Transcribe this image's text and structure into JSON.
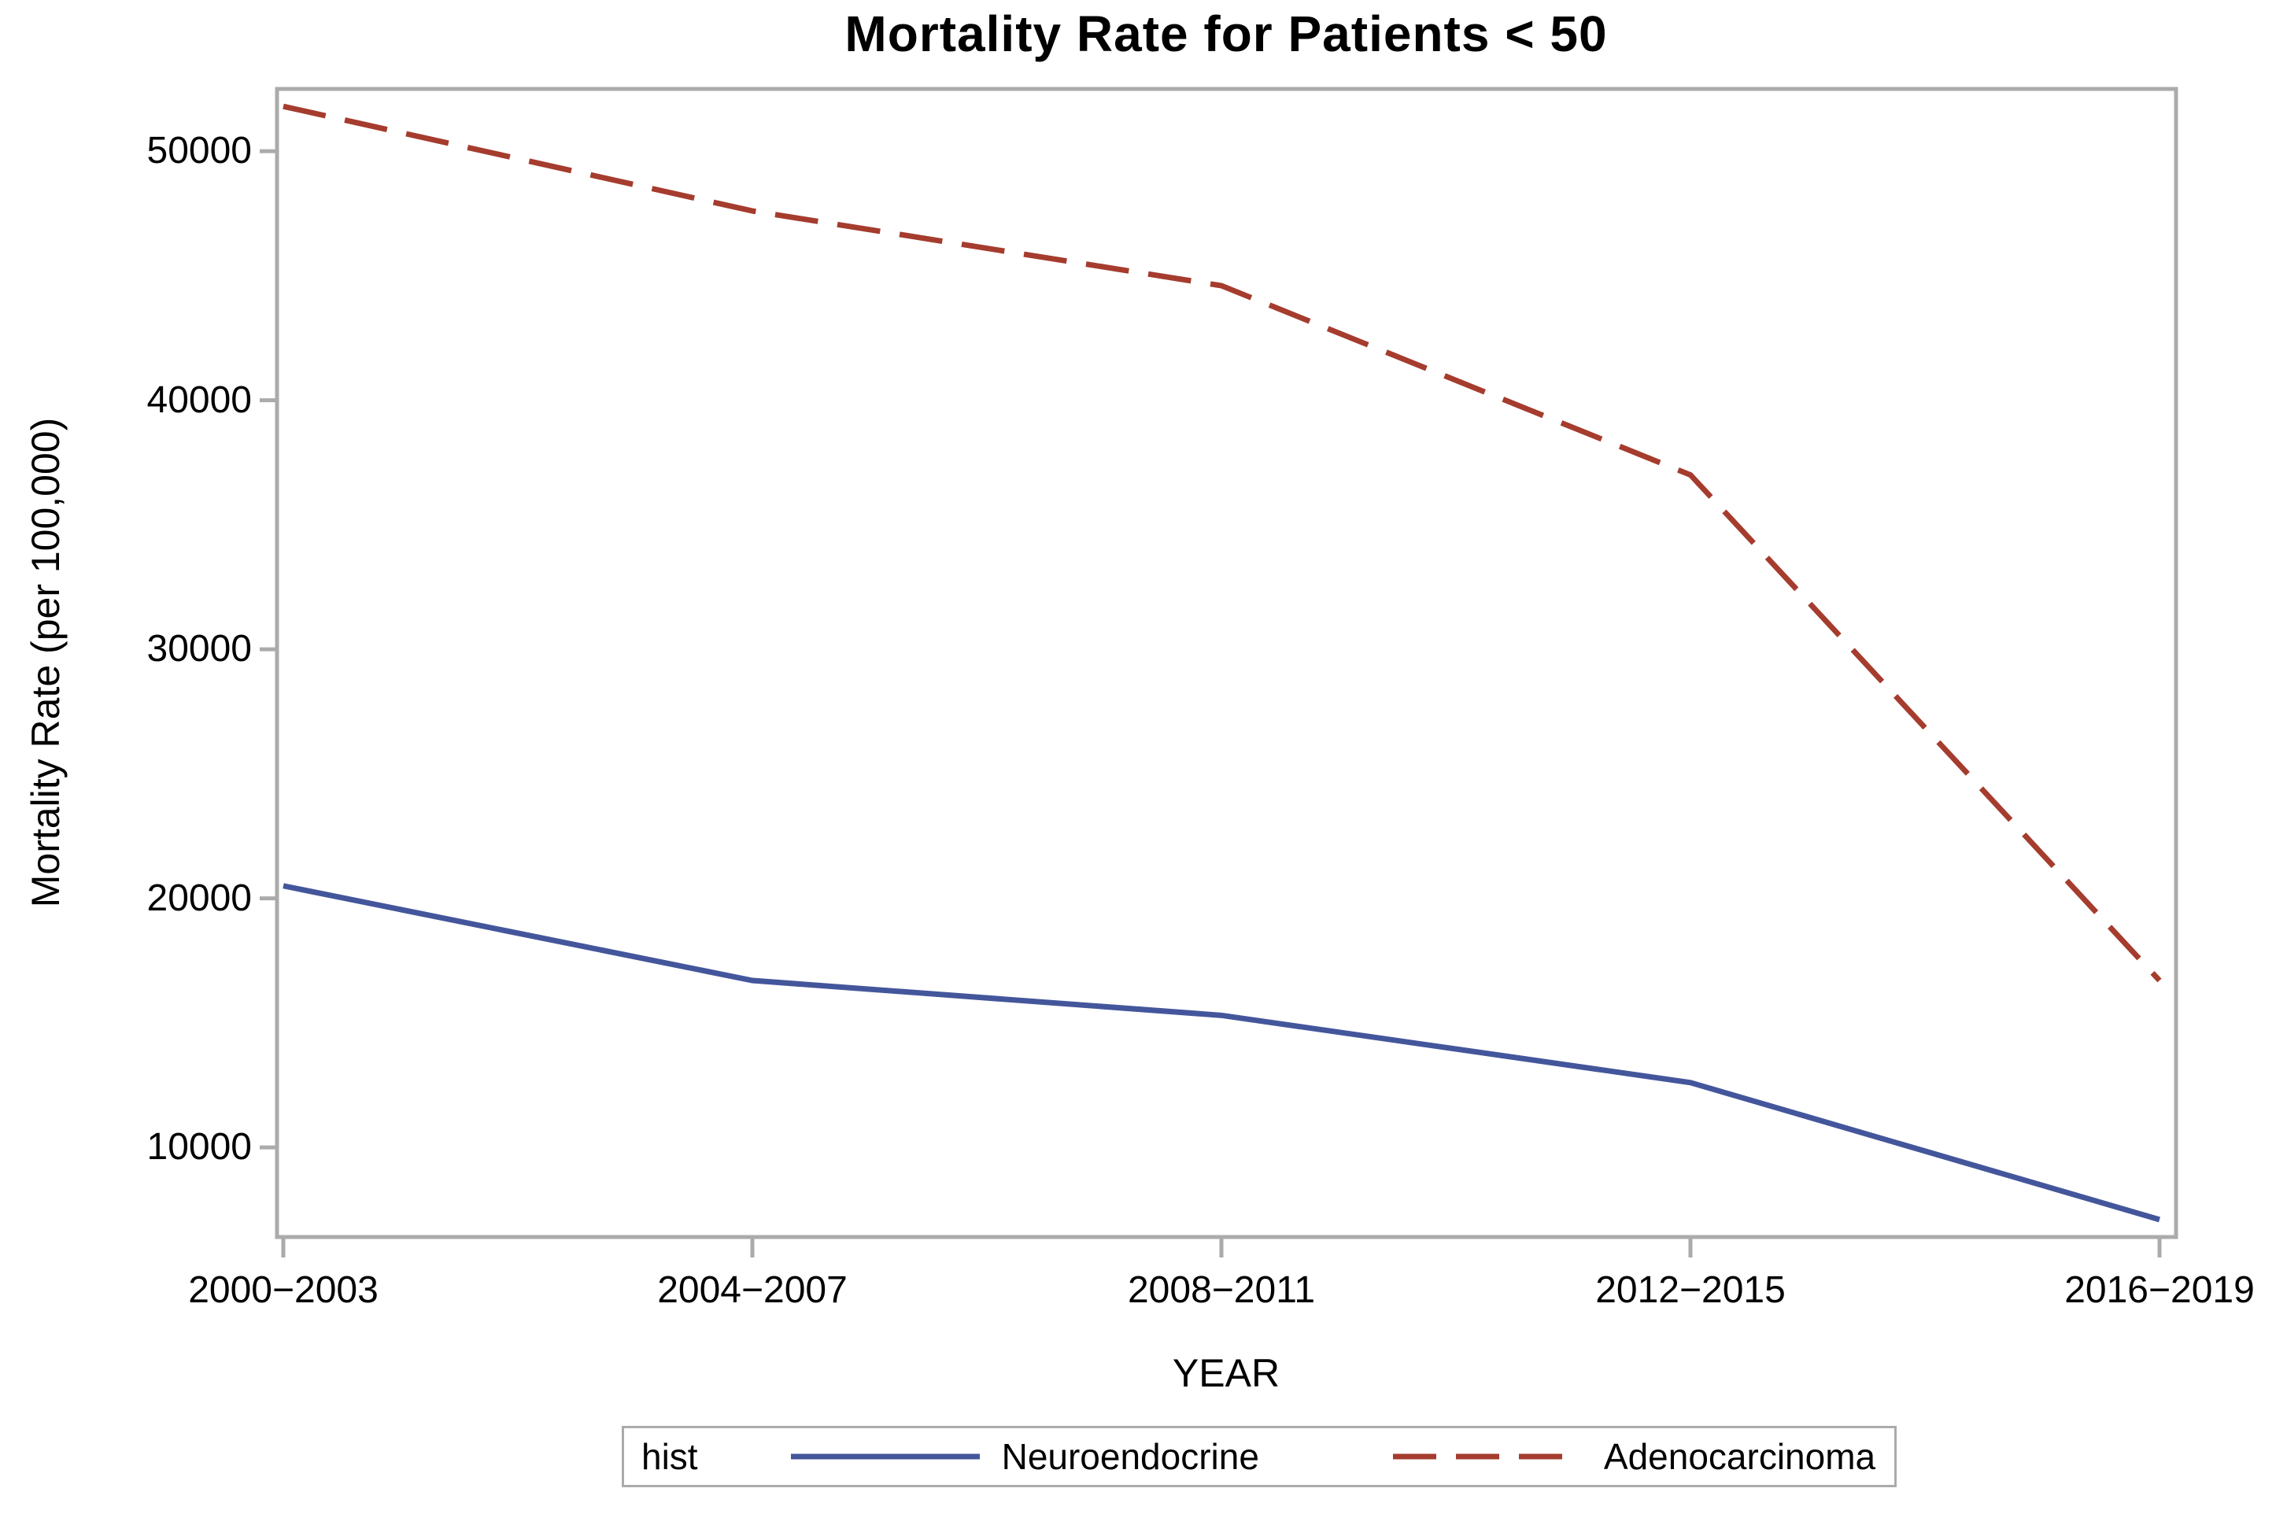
{
  "chart_data": {
    "type": "line",
    "title": "Mortality Rate for Patients < 50",
    "categories": [
      "2000−2003",
      "2004−2007",
      "2008−2011",
      "2012−2015",
      "2016−2019"
    ],
    "series": [
      {
        "name": "Neuroendocrine",
        "color": "#44569B",
        "line_style": "solid",
        "values": [
          20500,
          16700,
          15300,
          12600,
          7100
        ]
      },
      {
        "name": "Adenocarcinoma",
        "color": "#A53C2E",
        "line_style": "dashed",
        "values": [
          51800,
          47600,
          44600,
          37000,
          16700
        ]
      }
    ],
    "xlabel": "YEAR",
    "ylabel": "Mortality Rate (per 100,000)",
    "y_ticks": [
      10000,
      20000,
      30000,
      40000,
      50000
    ],
    "ylim": [
      6400,
      52500
    ],
    "grid": false,
    "legend_position": "bottom"
  },
  "legend": {
    "title": "hist"
  },
  "colors": {
    "frame": "#ABABAB",
    "background": "#FFFFFF"
  }
}
